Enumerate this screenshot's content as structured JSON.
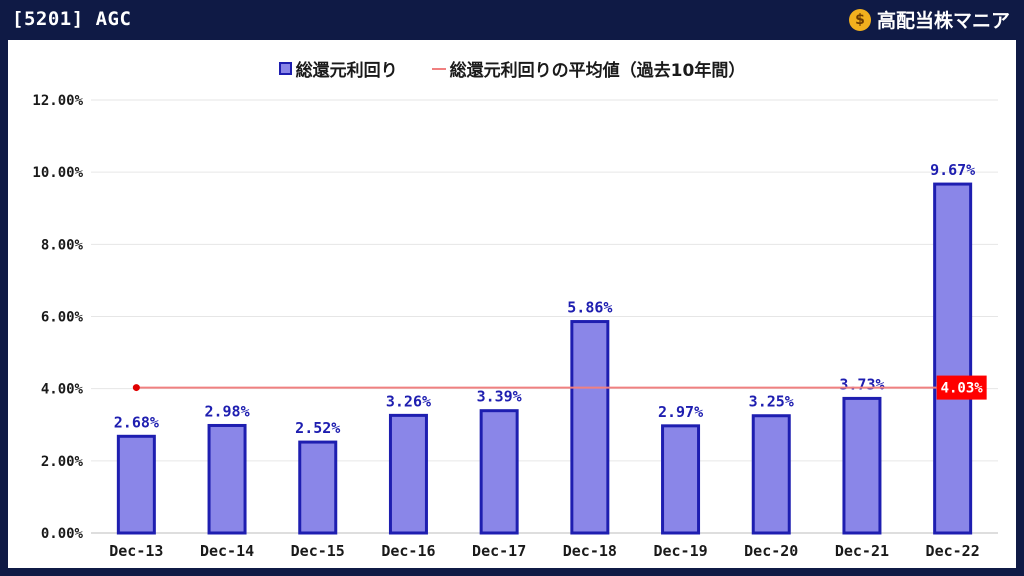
{
  "header": {
    "title": "[5201] AGC",
    "brand": "高配当株マニア",
    "brand_icon": "money-bag-icon"
  },
  "colors": {
    "background": "#0f1a45",
    "bar_fill": "#8a86e8",
    "bar_stroke": "#1e1eb0",
    "avg_line": "#f08080",
    "avg_label_bg": "#ff0000",
    "data_label": "#1e1eb0"
  },
  "chart_data": {
    "type": "bar",
    "categories": [
      "Dec-13",
      "Dec-14",
      "Dec-15",
      "Dec-16",
      "Dec-17",
      "Dec-18",
      "Dec-19",
      "Dec-20",
      "Dec-21",
      "Dec-22"
    ],
    "series": [
      {
        "name": "総還元利回り",
        "values": [
          2.68,
          2.98,
          2.52,
          3.26,
          3.39,
          5.86,
          2.97,
          3.25,
          3.73,
          9.67
        ],
        "labels": [
          "2.68%",
          "2.98%",
          "2.52%",
          "3.26%",
          "3.39%",
          "5.86%",
          "2.97%",
          "3.25%",
          "3.73%",
          "9.67%"
        ]
      }
    ],
    "average": {
      "name": "総還元利回りの平均値（過去10年間）",
      "value": 4.03,
      "label": "4.03%"
    },
    "ylim": [
      0,
      12
    ],
    "yticks": [
      0,
      2,
      4,
      6,
      8,
      10,
      12
    ],
    "ytick_labels": [
      "0.00%",
      "2.00%",
      "4.00%",
      "6.00%",
      "8.00%",
      "10.00%",
      "12.00%"
    ],
    "grid": true,
    "legend": "top-center"
  }
}
